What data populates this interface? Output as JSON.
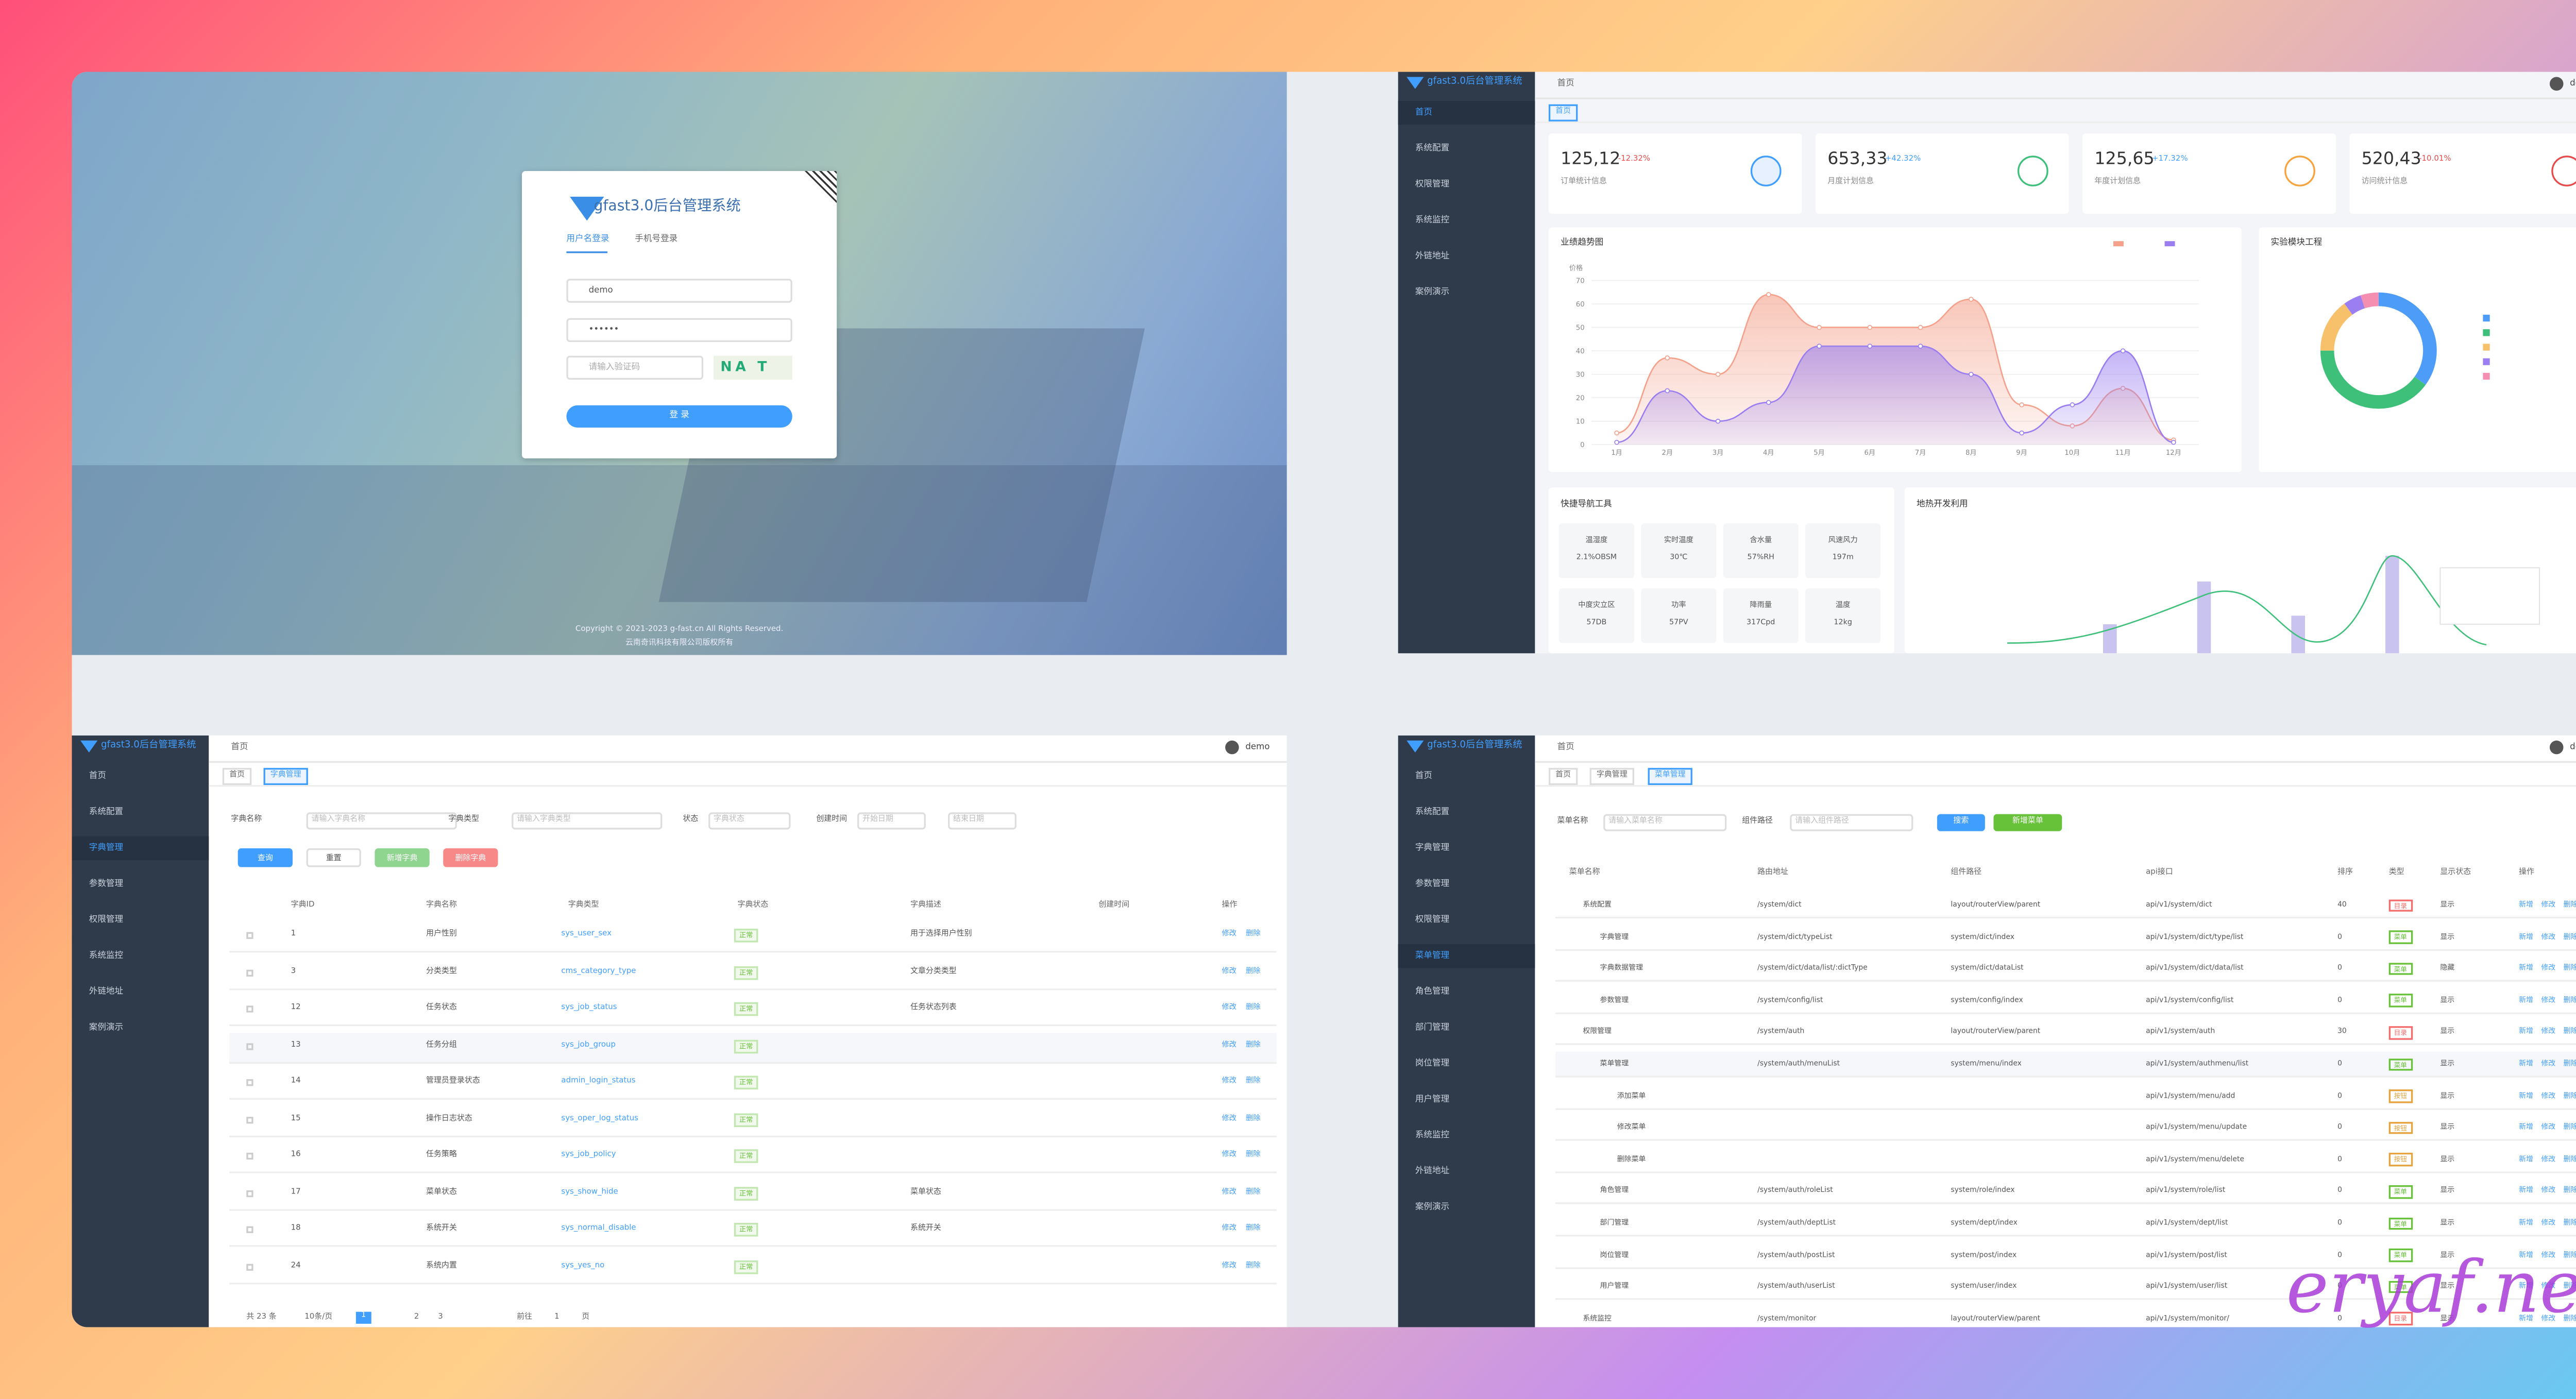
{
  "login": {
    "title": "gfast3.0后台管理系统",
    "tabs": [
      "用户名登录",
      "手机号登录"
    ],
    "username": "demo",
    "password": "••••••",
    "captcha_placeholder": "请输入验证码",
    "captcha": "NA T",
    "button": "登 录",
    "copyright": "Copyright © 2021-2023 g-fast.cn All Rights Reserved.",
    "icp": "云南奇讯科技有限公司版权所有"
  },
  "dashboard": {
    "app_title": "gfast3.0后台管理系统",
    "breadcrumb": "首页",
    "tag": "首页",
    "user": "demo",
    "sidebar": [
      "首页",
      "系统配置",
      "权限管理",
      "系统监控",
      "外链地址",
      "案例演示"
    ],
    "stats": [
      {
        "value": "125,12",
        "change": "-12.32%",
        "label": "订单统计信息"
      },
      {
        "value": "653,33",
        "change": "+42.32%",
        "label": "月度计划信息"
      },
      {
        "value": "125,65",
        "change": "+17.32%",
        "label": "年度计划信息"
      },
      {
        "value": "520,43",
        "change": "-10.01%",
        "label": "访问统计信息"
      }
    ],
    "chart_data": {
      "type": "area",
      "title": "业绩趋势图",
      "y_label": "价格",
      "categories": [
        "1月",
        "2月",
        "3月",
        "4月",
        "5月",
        "6月",
        "7月",
        "8月",
        "9月",
        "10月",
        "11月",
        "12月"
      ],
      "series": [
        {
          "color": "#f4a08a",
          "values": [
            5,
            37,
            30,
            64,
            50,
            50,
            50,
            62,
            17,
            8,
            24,
            2
          ]
        },
        {
          "color": "#9a7ef0",
          "values": [
            1,
            23,
            10,
            18,
            42,
            42,
            42,
            30,
            5,
            17,
            40,
            1
          ]
        }
      ],
      "ylim": [
        0,
        70
      ],
      "yticks": [
        0,
        10,
        20,
        30,
        40,
        50,
        60,
        70
      ]
    },
    "donut": {
      "type": "pie",
      "title": "实验模块工程",
      "values": [
        35,
        40,
        15,
        5,
        5
      ],
      "colors": [
        "#4d9cf8",
        "#3ec07a",
        "#f7c06a",
        "#9b7ff2",
        "#f48fb1"
      ]
    },
    "tools_title": "快捷导航工具",
    "tools": [
      {
        "name": "温湿度",
        "value": "2.1%OBSM"
      },
      {
        "name": "实时温度",
        "value": "30℃"
      },
      {
        "name": "含水量",
        "value": "57%RH"
      },
      {
        "name": "风速风力",
        "value": "197m"
      },
      {
        "name": "中度灾立区",
        "value": "57DB"
      },
      {
        "name": "功率",
        "value": "57PV"
      },
      {
        "name": "降雨量",
        "value": "317Cpd"
      },
      {
        "name": "温度",
        "value": "12kg"
      }
    ],
    "trend_title": "地热开发利用"
  },
  "dict_page": {
    "app_title": "gfast3.0后台管理系统",
    "breadcrumb": "首页",
    "tags": [
      "首页",
      "字典管理"
    ],
    "user": "demo",
    "sidebar": [
      "首页",
      "系统配置",
      "字典管理",
      "参数管理",
      "权限管理",
      "系统监控",
      "外链地址",
      "案例演示"
    ],
    "filters": [
      "字典名称",
      "请输入字典名称",
      "字典类型",
      "请输入字典类型",
      "状态",
      "字典状态",
      "创建时间",
      "开始日期",
      "结束日期"
    ],
    "buttons": [
      "查询",
      "重置",
      "新增字典",
      "删除字典"
    ],
    "columns": [
      "字典ID",
      "字典名称",
      "字典类型",
      "字典状态",
      "字典描述",
      "创建时间",
      "操作"
    ],
    "rows": [
      [
        "1",
        "用户性别",
        "sys_user_sex",
        "正常",
        "用于选择用户性别"
      ],
      [
        "3",
        "分类类型",
        "cms_category_type",
        "正常",
        "文章分类类型"
      ],
      [
        "12",
        "任务状态",
        "sys_job_status",
        "正常",
        "任务状态列表"
      ],
      [
        "13",
        "任务分组",
        "sys_job_group",
        "正常",
        ""
      ],
      [
        "14",
        "管理员登录状态",
        "admin_login_status",
        "正常",
        ""
      ],
      [
        "15",
        "操作日志状态",
        "sys_oper_log_status",
        "正常",
        ""
      ],
      [
        "16",
        "任务策略",
        "sys_job_policy",
        "正常",
        ""
      ],
      [
        "17",
        "菜单状态",
        "sys_show_hide",
        "正常",
        "菜单状态"
      ],
      [
        "18",
        "系统开关",
        "sys_normal_disable",
        "正常",
        "系统开关"
      ],
      [
        "24",
        "系统内置",
        "sys_yes_no",
        "正常",
        ""
      ]
    ],
    "actions": [
      "修改",
      "删除"
    ],
    "pagination": [
      "共 23 条",
      "10条/页",
      "1",
      "2",
      "3",
      "前往",
      "1",
      "页"
    ]
  },
  "menu_page": {
    "app_title": "gfast3.0后台管理系统",
    "breadcrumb": "首页",
    "tags": [
      "首页",
      "字典管理",
      "菜单管理"
    ],
    "user": "demo",
    "sidebar": [
      "首页",
      "系统配置",
      "字典管理",
      "参数管理",
      "权限管理",
      "菜单管理",
      "角色管理",
      "部门管理",
      "岗位管理",
      "用户管理",
      "系统监控",
      "外链地址",
      "案例演示"
    ],
    "filters": [
      "菜单名称",
      "请输入菜单名称",
      "组件路径",
      "请输入组件路径"
    ],
    "buttons": [
      "搜索",
      "新增菜单"
    ],
    "columns": [
      "菜单名称",
      "路由地址",
      "组件路径",
      "api接口",
      "排序",
      "类型",
      "显示状态",
      "操作"
    ],
    "rows": [
      [
        "系统配置",
        "/system/dict",
        "layout/routerView/parent",
        "api/v1/system/dict",
        "40",
        "目录",
        "显示"
      ],
      [
        "字典管理",
        "/system/dict/typeList",
        "system/dict/index",
        "api/v1/system/dict/type/list",
        "0",
        "菜单",
        "显示"
      ],
      [
        "字典数据管理",
        "/system/dict/data/list/:dictType",
        "system/dict/dataList",
        "api/v1/system/dict/data/list",
        "0",
        "菜单",
        "隐藏"
      ],
      [
        "参数管理",
        "/system/config/list",
        "system/config/index",
        "api/v1/system/config/list",
        "0",
        "菜单",
        "显示"
      ],
      [
        "权限管理",
        "/system/auth",
        "layout/routerView/parent",
        "api/v1/system/auth",
        "30",
        "目录",
        "显示"
      ],
      [
        "菜单管理",
        "/system/auth/menuList",
        "system/menu/index",
        "api/v1/system/authmenu/list",
        "0",
        "菜单",
        "显示"
      ],
      [
        "添加菜单",
        "",
        "",
        "api/v1/system/menu/add",
        "0",
        "按钮",
        "显示"
      ],
      [
        "修改菜单",
        "",
        "",
        "api/v1/system/menu/update",
        "0",
        "按钮",
        "显示"
      ],
      [
        "删除菜单",
        "",
        "",
        "api/v1/system/menu/delete",
        "0",
        "按钮",
        "显示"
      ],
      [
        "角色管理",
        "/system/auth/roleList",
        "system/role/index",
        "api/v1/system/role/list",
        "0",
        "菜单",
        "显示"
      ],
      [
        "部门管理",
        "/system/auth/deptList",
        "system/dept/index",
        "api/v1/system/dept/list",
        "0",
        "菜单",
        "显示"
      ],
      [
        "岗位管理",
        "/system/auth/postList",
        "system/post/index",
        "api/v1/system/post/list",
        "0",
        "菜单",
        "显示"
      ],
      [
        "用户管理",
        "/system/auth/userList",
        "system/user/index",
        "api/v1/system/user/list",
        "0",
        "菜单",
        "显示"
      ],
      [
        "系统监控",
        "/system/monitor",
        "layout/routerView/parent",
        "api/v1/system/monitor/",
        "0",
        "目录",
        "显示"
      ]
    ],
    "actions": [
      "新增",
      "修改",
      "删除"
    ]
  },
  "watermark": "eryaf.net"
}
